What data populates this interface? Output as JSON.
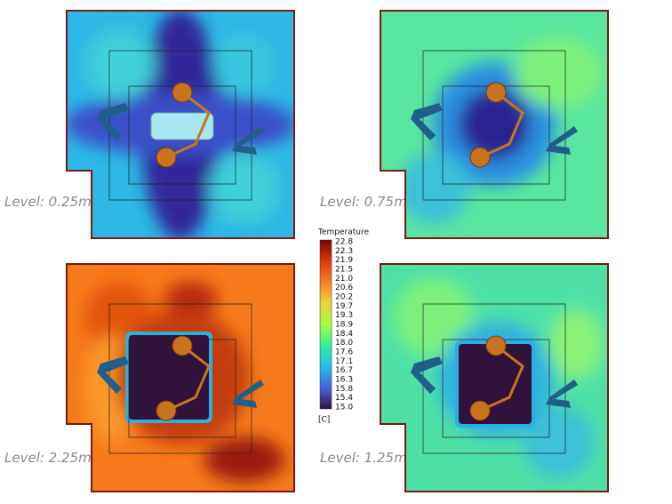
{
  "panels": [
    {
      "label": "Level: 0.25m"
    },
    {
      "label": "Level: 0.75m"
    },
    {
      "label": "Level: 2.25m"
    },
    {
      "label": "Level: 1.25m"
    }
  ],
  "colorbar": {
    "title": "Temperature",
    "unit": "[C]",
    "ticks": [
      22.8,
      22.3,
      21.9,
      21.5,
      {
        "value": 21,
        "label": "21.0"
      },
      20.6,
      20.2,
      19.7,
      19.3,
      18.9,
      18.4,
      {
        "value": 18,
        "label": "18.0"
      },
      17.6,
      17.1,
      16.7,
      16.3,
      15.8,
      15.4,
      {
        "value": 15,
        "label": "15.0"
      }
    ]
  }
}
